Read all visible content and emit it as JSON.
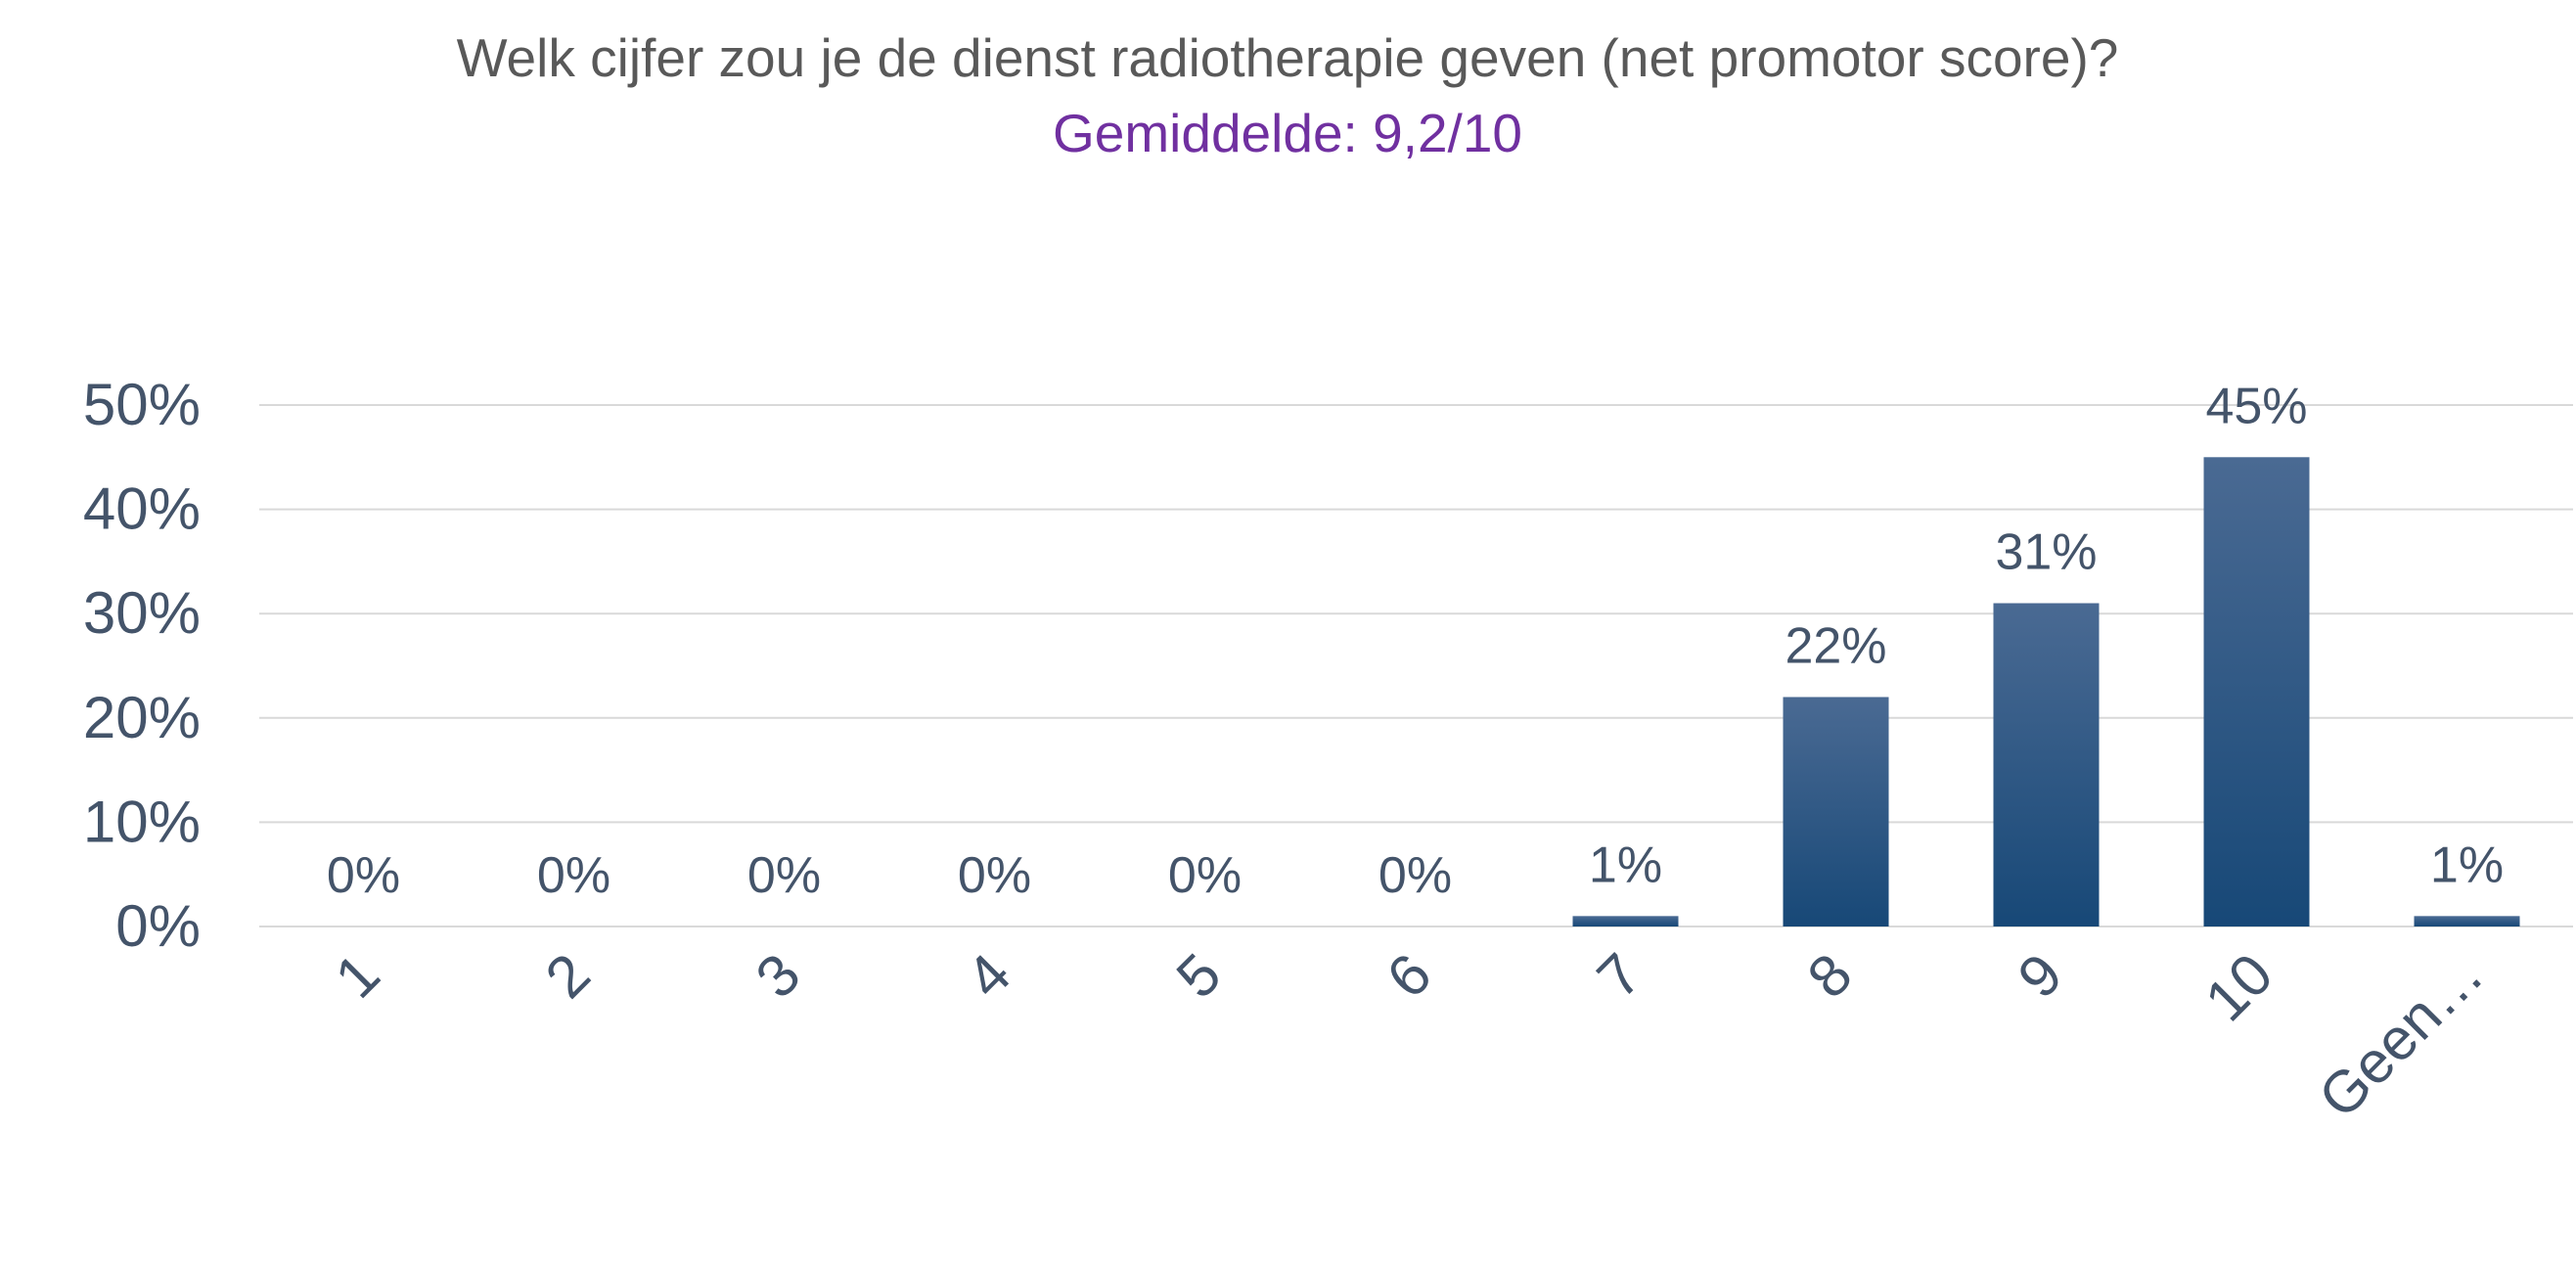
{
  "chart_data": {
    "type": "bar",
    "title": "Welk cijfer zou je de dienst radiotherapie geven (net promotor score)?",
    "subtitle": "Gemiddelde: 9,2/10",
    "categories": [
      "1",
      "2",
      "3",
      "4",
      "5",
      "6",
      "7",
      "8",
      "9",
      "10",
      "Geen…"
    ],
    "values": [
      0,
      0,
      0,
      0,
      0,
      0,
      1,
      22,
      31,
      45,
      1
    ],
    "data_labels": [
      "0%",
      "0%",
      "0%",
      "0%",
      "0%",
      "0%",
      "1%",
      "22%",
      "31%",
      "45%",
      "1%"
    ],
    "yticks": [
      "0%",
      "10%",
      "20%",
      "30%",
      "40%",
      "50%"
    ],
    "ylim": [
      0,
      50
    ],
    "xlabel": "",
    "ylabel": "",
    "grid": true,
    "legend": "none",
    "colors": {
      "bar_top": "#4A6A93",
      "bar_bottom": "#174877",
      "gridline": "#D9D9D9",
      "axis_text": "#44546A",
      "title": "#595959",
      "subtitle": "#7030A0"
    }
  }
}
